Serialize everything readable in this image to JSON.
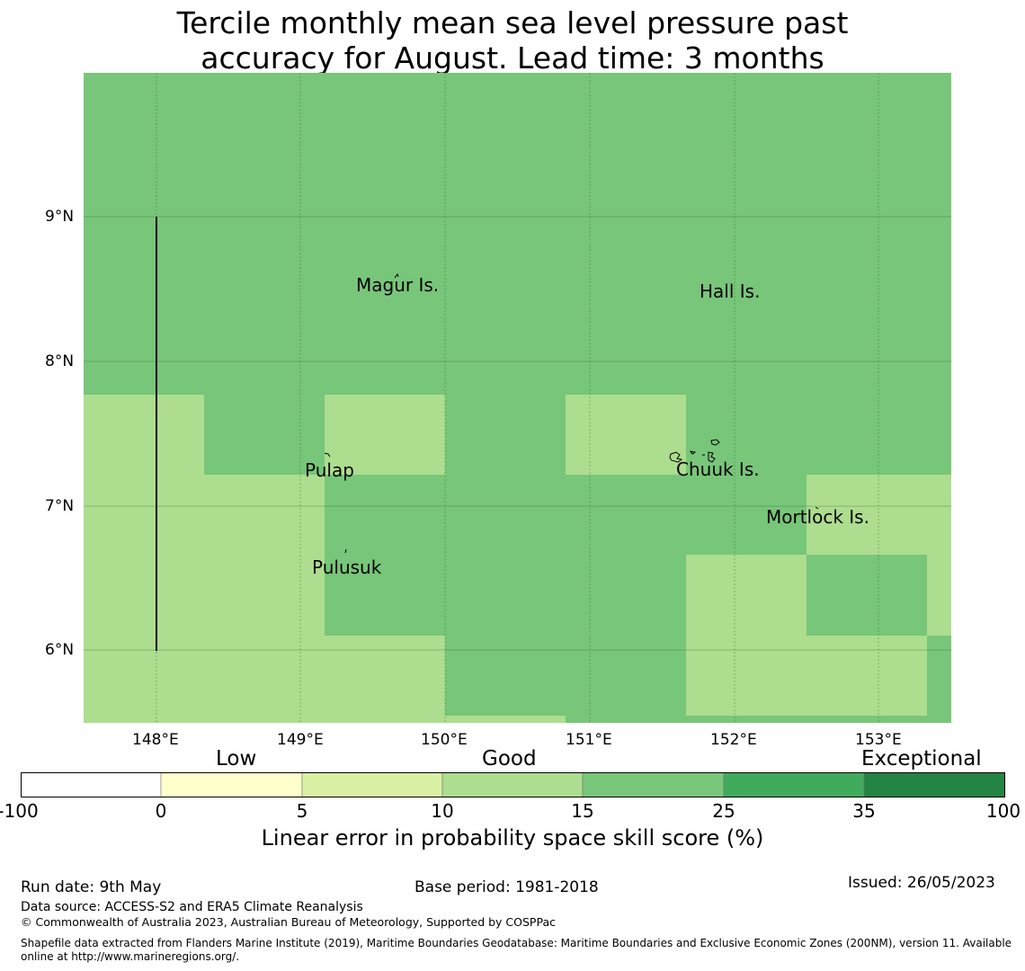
{
  "title": {
    "line1": "Tercile monthly mean sea level pressure past",
    "line2": "accuracy for August. Lead time: 3 months"
  },
  "axes": {
    "lon_ticks": [
      "148°E",
      "149°E",
      "150°E",
      "151°E",
      "152°E",
      "153°E"
    ],
    "lat_ticks": [
      "9°N",
      "8°N",
      "7°N",
      "6°N"
    ]
  },
  "places": [
    {
      "name": "Magur Is."
    },
    {
      "name": "Hall Is."
    },
    {
      "name": "Pulap"
    },
    {
      "name": "Chuuk Is."
    },
    {
      "name": "Mortlock Is."
    },
    {
      "name": "Pulusuk"
    }
  ],
  "colorbar": {
    "categories": [
      "Low",
      "Good",
      "Exceptional"
    ],
    "ticks": [
      "-100",
      "0",
      "5",
      "10",
      "15",
      "25",
      "35",
      "100"
    ],
    "colors": [
      "#ffffff",
      "#ffffcc",
      "#d9f0a3",
      "#addd8e",
      "#78c679",
      "#41ab5d",
      "#238443"
    ],
    "label": "Linear error in probability space skill score (%)"
  },
  "footer": {
    "run_date": "Run date: 9th May",
    "base_period": "Base period: 1981-2018",
    "issued": "Issued: 26/05/2023",
    "data_source": "Data source: ACCESS-S2 and ERA5 Climate Reanalysis",
    "copyright": "© Commonwealth of Australia 2023, Australian Bureau of Meteorology, Supported by COSPPac",
    "shapefile_line1": "Shapefile data extracted from Flanders Marine Institute (2019), Maritime Boundaries Geodatabase: Maritime Boundaries and Exclusive Economic Zones (200NM), version 11. Available",
    "shapefile_line2": "online at http://www.marineregions.org/."
  },
  "map_data": {
    "colors": {
      "good_15_25": "#78c679",
      "good_10_15": "#addd8e"
    }
  }
}
